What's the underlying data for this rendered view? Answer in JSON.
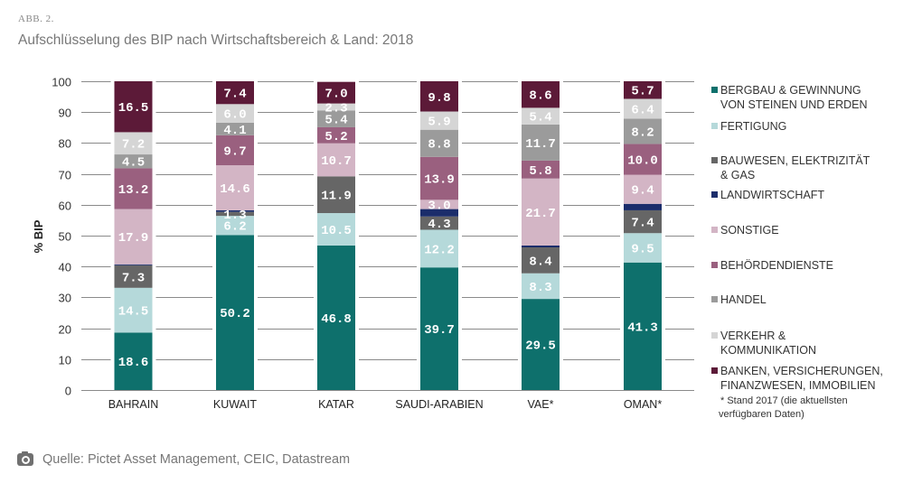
{
  "header": {
    "figure_label": "ABB. 2.",
    "title": "Aufschlüsselung des BIP nach Wirtschaftsbereich & Land: 2018"
  },
  "chart_data": {
    "type": "bar",
    "stacked": true,
    "title": "Aufschlüsselung des BIP nach Wirtschaftsbereich & Land: 2018",
    "xlabel": "",
    "ylabel": "% BIP",
    "ylim": [
      0,
      100
    ],
    "yticks": [
      0,
      10,
      20,
      30,
      40,
      50,
      60,
      70,
      80,
      90,
      100
    ],
    "grid": true,
    "legend_position": "right",
    "categories": [
      "BAHRAIN",
      "KUWAIT",
      "KATAR",
      "SAUDI-ARABIEN",
      "VAE*",
      "OMAN*"
    ],
    "series": [
      {
        "name": "BERGBAU & GEWINNUNG VON STEINEN UND ERDEN",
        "legend_lines": [
          "BERGBAU & GEWINNUNG",
          "VON STEINEN UND ERDEN"
        ],
        "color": "#0e706c",
        "values": [
          18.6,
          50.2,
          46.8,
          39.7,
          29.5,
          41.3
        ],
        "labels": [
          "18.6",
          "50.2",
          "46.8",
          "39.7",
          "29.5",
          "41.3"
        ]
      },
      {
        "name": "FERTIGUNG",
        "legend_lines": [
          "FERTIGUNG"
        ],
        "color": "#b5d9da",
        "values": [
          14.5,
          6.2,
          10.5,
          12.2,
          8.3,
          9.5
        ],
        "labels": [
          "14.5",
          "6.2",
          "10.5",
          "12.2",
          "8.3",
          "9.5"
        ]
      },
      {
        "name": "BAUWESEN, ELEKTRIZITÄT & GAS",
        "legend_lines": [
          "BAUWESEN, ELEKTRIZITÄT",
          "& GAS"
        ],
        "color": "#666666",
        "values": [
          7.3,
          1.3,
          11.9,
          4.3,
          8.4,
          7.4
        ],
        "labels": [
          "7.3",
          "1.3",
          "11.9",
          "4.3",
          "8.4",
          "7.4"
        ]
      },
      {
        "name": "LANDWIRTSCHAFT",
        "legend_lines": [
          "LANDWIRTSCHAFT"
        ],
        "color": "#1b2d6b",
        "values": [
          0.3,
          0.5,
          0.0,
          2.4,
          0.6,
          2.1
        ],
        "labels": [
          null,
          null,
          null,
          null,
          null,
          null
        ]
      },
      {
        "name": "SONSTIGE",
        "legend_lines": [
          "SONSTIGE"
        ],
        "color": "#d3b5c5",
        "values": [
          17.9,
          14.6,
          10.7,
          3.0,
          21.7,
          9.4
        ],
        "labels": [
          "17.9",
          "14.6",
          "10.7",
          "3.0",
          "21.7",
          "9.4"
        ]
      },
      {
        "name": "BEHÖRDENDIENSTE",
        "legend_lines": [
          "BEHÖRDENDIENSTE"
        ],
        "color": "#9a607f",
        "values": [
          13.2,
          9.7,
          5.2,
          13.9,
          5.8,
          10.0
        ],
        "labels": [
          "13.2",
          "9.7",
          "5.2",
          "13.9",
          "5.8",
          "10.0"
        ]
      },
      {
        "name": "HANDEL",
        "legend_lines": [
          "HANDEL"
        ],
        "color": "#9b9b9b",
        "values": [
          4.5,
          4.1,
          5.4,
          8.8,
          11.7,
          8.2
        ],
        "labels": [
          "4.5",
          "4.1",
          "5.4",
          "8.8",
          "11.7",
          "8.2"
        ]
      },
      {
        "name": "VERKEHR & KOMMUNIKATION",
        "legend_lines": [
          "VERKEHR &",
          "KOMMUNIKATION"
        ],
        "color": "#d5d5d5",
        "values": [
          7.2,
          6.0,
          2.3,
          5.9,
          5.4,
          6.4
        ],
        "labels": [
          "7.2",
          "6.0",
          "2.3",
          "5.9",
          "5.4",
          "6.4"
        ]
      },
      {
        "name": "BANKEN, VERSICHERUNGEN, FINANZWESEN, IMMOBILIEN",
        "legend_lines": [
          "BANKEN, VERSICHERUNGEN,",
          "FINANZWESEN, IMMOBILIEN"
        ],
        "color": "#5c1a38",
        "values": [
          16.5,
          7.4,
          7.0,
          9.8,
          8.6,
          5.7
        ],
        "labels": [
          "16.5",
          "7.4",
          "7.0",
          "9.8",
          "8.6",
          "5.7"
        ]
      }
    ],
    "footnote_lines": [
      "* Stand 2017 (die aktuellsten",
      "verfügbaren Daten)"
    ]
  },
  "footer": {
    "icon": "camera-icon",
    "source": "Quelle: Pictet Asset Management, CEIC, Datastream"
  }
}
